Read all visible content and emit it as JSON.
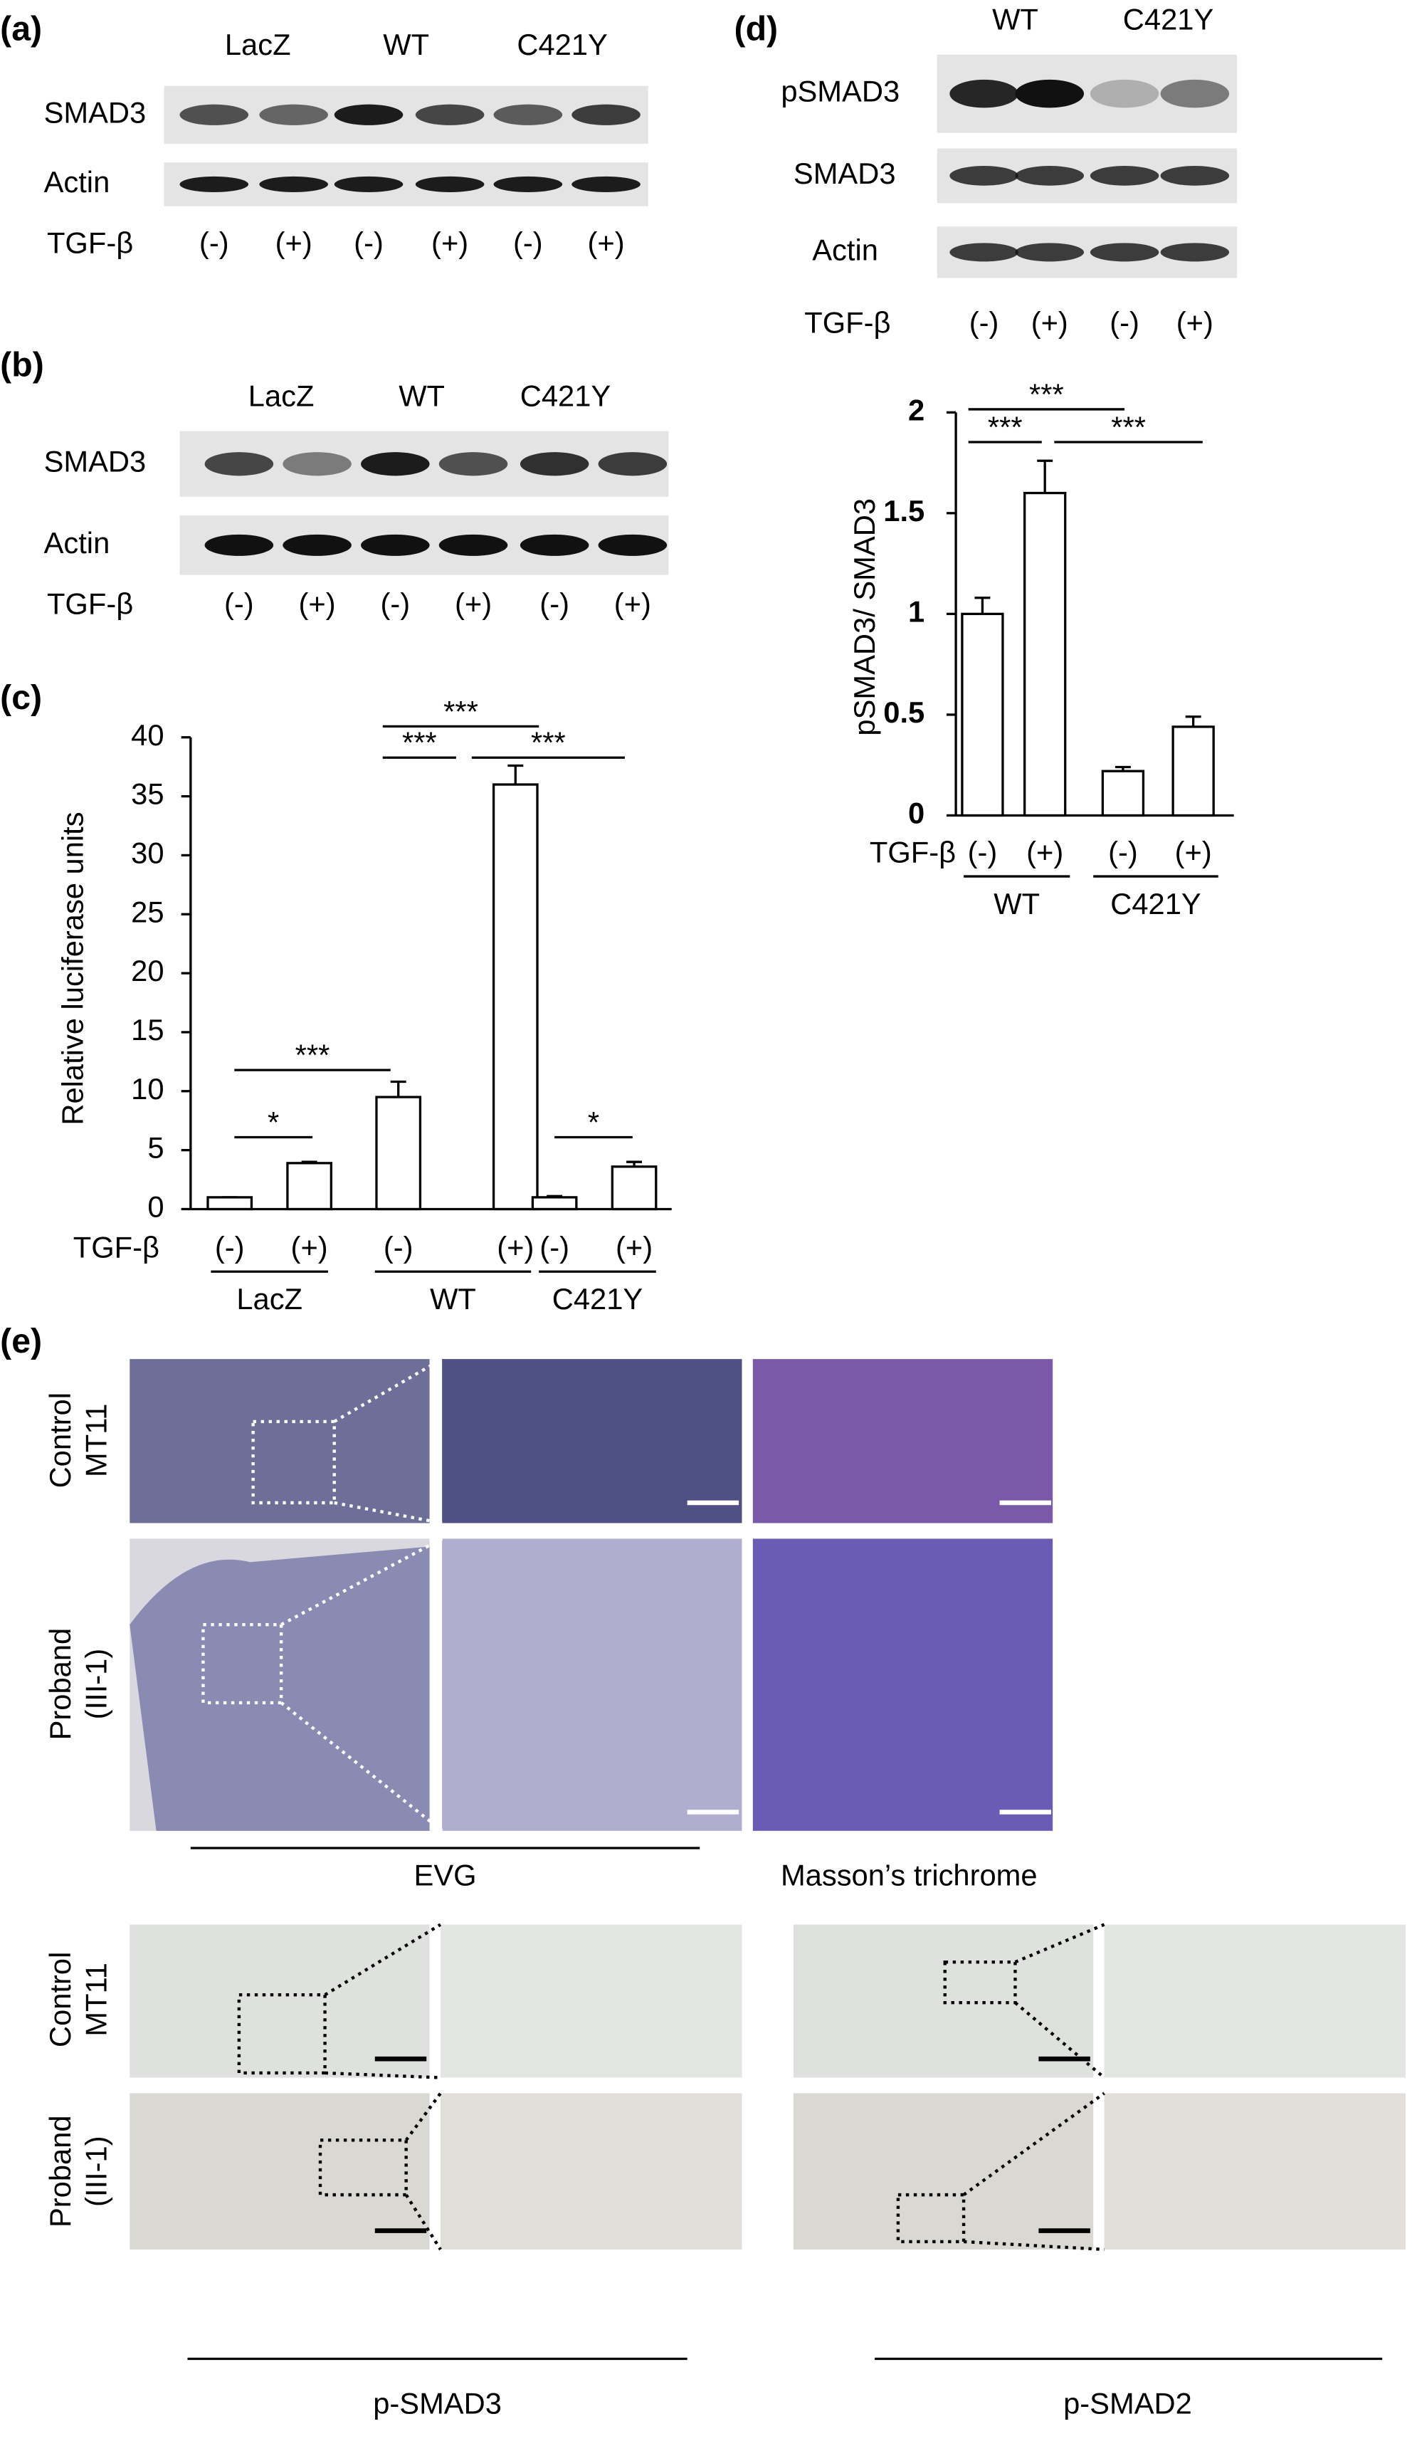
{
  "panel_labels": [
    "(a)",
    "(b)",
    "(c)",
    "(d)",
    "(e)"
  ],
  "blot_a": {
    "groups": [
      "LacZ",
      "WT",
      "C421Y"
    ],
    "rows": [
      "SMAD3",
      "Actin"
    ],
    "treatment": "TGF-β",
    "lanes": [
      "(-)",
      "(+)",
      "(-)",
      "(+)",
      "(-)",
      "(+)"
    ]
  },
  "blot_b": {
    "groups": [
      "LacZ",
      "WT",
      "C421Y"
    ],
    "rows": [
      "SMAD3",
      "Actin"
    ],
    "treatment": "TGF-β",
    "lanes": [
      "(-)",
      "(+)",
      "(-)",
      "(+)",
      "(-)",
      "(+)"
    ]
  },
  "blot_d": {
    "groups": [
      "WT",
      "C421Y"
    ],
    "rows": [
      "pSMAD3",
      "SMAD3",
      "Actin"
    ],
    "treatment": "TGF-β",
    "lanes": [
      "(-)",
      "(+)",
      "(-)",
      "(+)"
    ]
  },
  "chart_data": [
    {
      "type": "bar",
      "ylabel": "Relative luciferase units",
      "treatment": "TGF-β",
      "categories": [
        "(-)",
        "(+)",
        "(-)",
        "(+)",
        "(-)",
        "(+)"
      ],
      "groups": [
        "LacZ",
        "WT",
        "C421Y"
      ],
      "values": [
        1,
        3.9,
        9.5,
        36,
        1,
        3.6
      ],
      "errors": [
        0,
        0.1,
        1.3,
        1.6,
        0.1,
        0.4
      ],
      "ylim": [
        0,
        40
      ],
      "yticks": [
        0,
        5,
        10,
        15,
        20,
        25,
        30,
        35,
        40
      ],
      "color": "#ffffff",
      "significance": [
        "*",
        "***",
        "***",
        "***",
        "***",
        "*"
      ]
    },
    {
      "type": "bar",
      "ylabel": "pSMAD3/ SMAD3",
      "treatment": "TGF-β",
      "categories": [
        "(-)",
        "(+)",
        "(-)",
        "(+)"
      ],
      "groups": [
        "WT",
        "C421Y"
      ],
      "values": [
        1,
        1.6,
        0.22,
        0.44
      ],
      "errors": [
        0.08,
        0.16,
        0.02,
        0.05
      ],
      "ylim": [
        0,
        2
      ],
      "yticks": [
        0,
        0.5,
        1,
        1.5,
        2
      ],
      "color": "#ffffff",
      "significance": [
        "***",
        "***",
        "***"
      ]
    }
  ],
  "histology": {
    "rows": [
      [
        "Control",
        "MT11"
      ],
      [
        "Proband",
        "(III-1)"
      ]
    ],
    "stains": [
      "EVG",
      "Masson’s trichrome"
    ]
  },
  "ihc": {
    "rows": [
      [
        "Control",
        "MT11"
      ],
      [
        "Proband",
        "(III-1)"
      ]
    ],
    "stains": [
      "p-SMAD3",
      "p-SMAD2"
    ]
  }
}
